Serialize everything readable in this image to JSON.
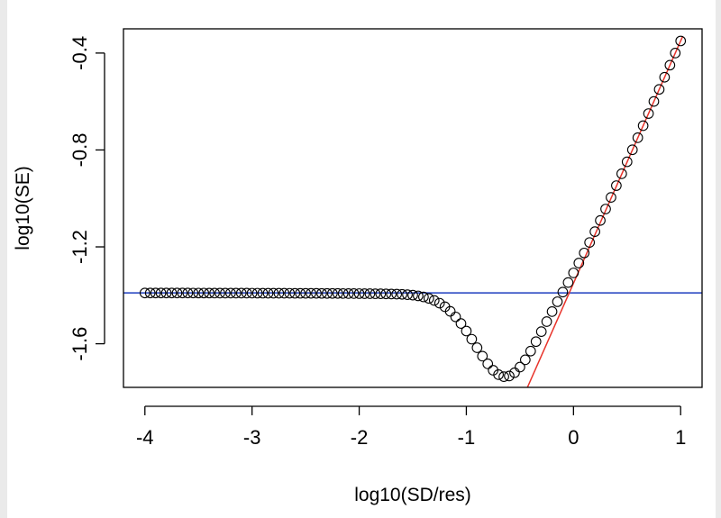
{
  "chart_data": {
    "type": "scatter",
    "xlabel": "log10(SD/res)",
    "ylabel": "log10(SE)",
    "xlim": [
      -4.2,
      1.2
    ],
    "ylim": [
      -1.78,
      -0.3
    ],
    "x_ticks": [
      -4,
      -3,
      -2,
      -1,
      0,
      1
    ],
    "x_tick_labels": [
      "-4",
      "-3",
      "-2",
      "-1",
      "0",
      "1"
    ],
    "y_ticks": [
      -1.6,
      -1.2,
      -0.8,
      -0.4
    ],
    "y_tick_labels": [
      "-1.6",
      "-1.2",
      "-0.8",
      "-0.4"
    ],
    "series": [
      {
        "name": "points",
        "marker": "open-circle",
        "color": "#000000",
        "points_x_range": [
          -4,
          1
        ],
        "points_count": 101,
        "plateau_value": -1.39,
        "dip_location_x": -0.6,
        "dip_min_value": -1.745,
        "rise_slope": 1.0,
        "rise_intercept": -1.35
      }
    ],
    "lines": [
      {
        "name": "horizontal-reference-line",
        "type": "hline",
        "y": -1.39,
        "color": "#1f3fbf"
      },
      {
        "name": "regression-line",
        "type": "abline",
        "slope": 1.0,
        "intercept": -1.35,
        "x_from": -0.43,
        "x_to": 1.02,
        "color": "#e8332a"
      }
    ]
  }
}
